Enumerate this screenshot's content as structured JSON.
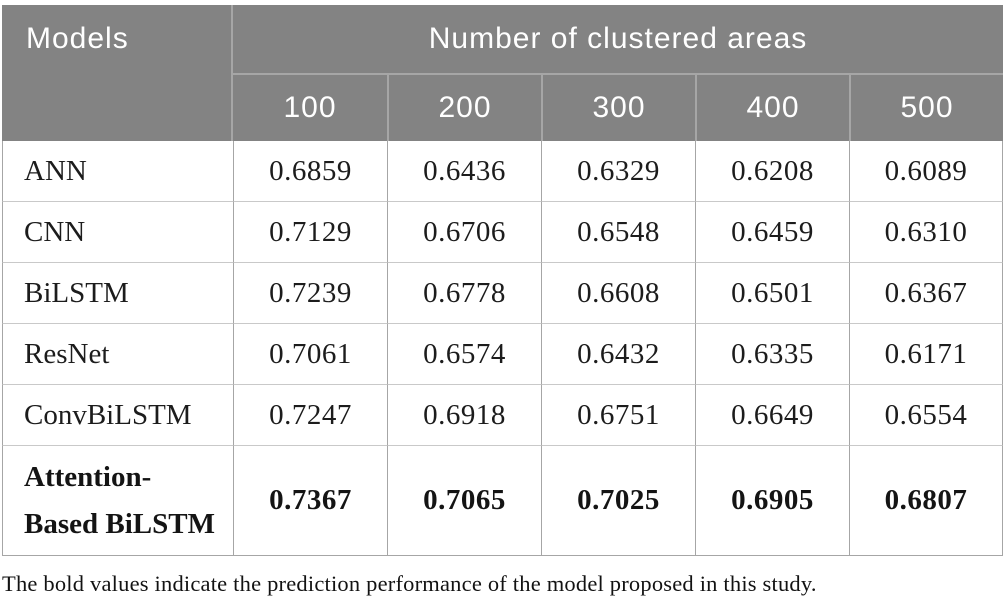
{
  "table": {
    "corner_header": "Models",
    "group_header": "Number of clustered areas",
    "columns": [
      "100",
      "200",
      "300",
      "400",
      "500"
    ],
    "rows": [
      {
        "model": "ANN",
        "values": [
          "0.6859",
          "0.6436",
          "0.6329",
          "0.6208",
          "0.6089"
        ],
        "bold": false
      },
      {
        "model": "CNN",
        "values": [
          "0.7129",
          "0.6706",
          "0.6548",
          "0.6459",
          "0.6310"
        ],
        "bold": false
      },
      {
        "model": "BiLSTM",
        "values": [
          "0.7239",
          "0.6778",
          "0.6608",
          "0.6501",
          "0.6367"
        ],
        "bold": false
      },
      {
        "model": "ResNet",
        "values": [
          "0.7061",
          "0.6574",
          "0.6432",
          "0.6335",
          "0.6171"
        ],
        "bold": false
      },
      {
        "model": "ConvBiLSTM",
        "values": [
          "0.7247",
          "0.6918",
          "0.6751",
          "0.6649",
          "0.6554"
        ],
        "bold": false
      },
      {
        "model": "Attention-Based BiLSTM",
        "model_lines": [
          "Attention-",
          "Based BiLSTM"
        ],
        "values": [
          "0.7367",
          "0.7065",
          "0.7025",
          "0.6905",
          "0.6807"
        ],
        "bold": true
      }
    ]
  },
  "footnote": "The bold values indicate the prediction performance of the model proposed in this study.",
  "colors": {
    "header_bg": "#838383",
    "header_text": "#ffffff",
    "header_divider": "#a6a6a6",
    "row_divider": "#c9c9c9",
    "column_divider": "#a6a6a6",
    "body_text": "#1c1c1c"
  }
}
